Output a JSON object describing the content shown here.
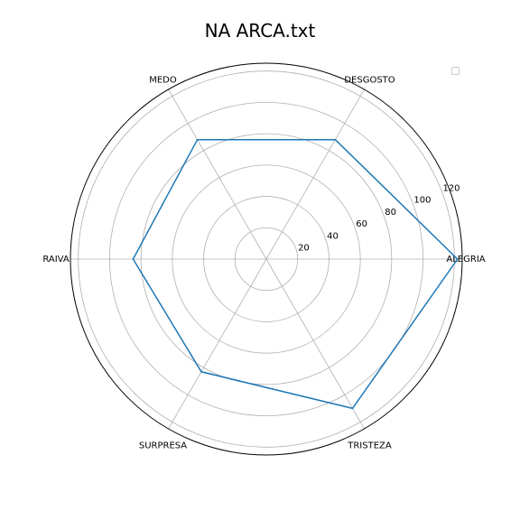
{
  "chart_data": {
    "type": "radar",
    "title": "NA ARCA.txt",
    "categories": [
      "ALEGRIA",
      "DESGOSTO",
      "MEDO",
      "RAIVA",
      "SURPRESA",
      "TRISTEZA"
    ],
    "series": [
      {
        "values": [
          122,
          88,
          88,
          85,
          83,
          110
        ],
        "color": "#1f77b4"
      }
    ],
    "radial_ticks": [
      20,
      40,
      60,
      80,
      100,
      120
    ],
    "rlim": [
      0,
      125
    ],
    "grid": true,
    "legend": "top-right, empty"
  }
}
